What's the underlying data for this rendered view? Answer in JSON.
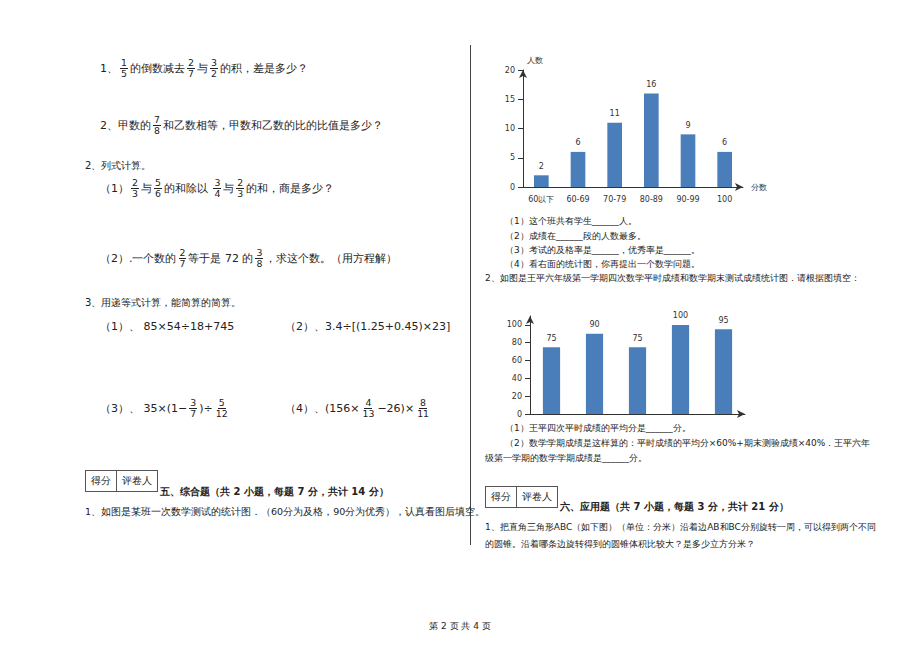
{
  "document": {
    "items": [
      {
        "segments": [
          "1、",
          {
            "n": "1",
            "d": "5"
          },
          "的倒数减去",
          {
            "n": "2",
            "d": "7"
          },
          "与",
          {
            "n": "3",
            "d": "2"
          },
          "的积，差是多少？"
        ]
      },
      {
        "segments": [
          "2、甲数的",
          {
            "n": "7",
            "d": "8"
          },
          "和乙数相等，甲数和乙数的比的比值是多少？"
        ]
      },
      {
        "segments": [
          "2、列式计算。"
        ]
      },
      {
        "segments": [
          "（1）",
          {
            "n": "2",
            "d": "3"
          },
          "与",
          {
            "n": "5",
            "d": "6"
          },
          "的和除以 ",
          {
            "n": "3",
            "d": "4"
          },
          "与",
          {
            "n": "2",
            "d": "3"
          },
          "的和，商是多少？"
        ]
      },
      {
        "segments": [
          "（2）.一个数的",
          {
            "n": "2",
            "d": "7"
          },
          "等于是 72 的",
          {
            "n": "3",
            "d": "8"
          },
          "，求这个数。（用方程解）"
        ]
      },
      {
        "segments": [
          "3、用递等式计算，能简算的简算。"
        ]
      },
      {
        "segments": [
          "（1）、 85×54÷18+745"
        ]
      },
      {
        "segments": [
          "（2）、3.4÷[(1.25+0.45)×23]"
        ]
      },
      {
        "segments": [
          "（3）、 35×(1−",
          {
            "n": "3",
            "d": "7"
          },
          ")÷",
          {
            "n": "5",
            "d": "12"
          }
        ]
      },
      {
        "segments": [
          "（4）、(156×",
          {
            "n": "4",
            "d": "13"
          },
          "−26)×",
          {
            "n": "8",
            "d": "11"
          }
        ]
      },
      {
        "segments": [
          "五、综合题（共 2 小题，每题 7 分，共计 14 分）"
        ]
      },
      {
        "segments": [
          "1、如图是某班一次数学测试的统计图．（60分为及格，90分为优秀），认真看图后填空。"
        ]
      },
      {
        "segments": [
          "（1）这个班共有学生______人。"
        ]
      },
      {
        "segments": [
          "（2）成绩在______段的人数最多。"
        ]
      },
      {
        "segments": [
          "（3）考试的及格率是______，优秀率是______。"
        ]
      },
      {
        "segments": [
          "（4）看右面的统计图，你再提出一个数学问题。"
        ]
      },
      {
        "segments": [
          "2、如图是王平六年级第一学期四次数学平时成绩和数学期末测试成绩统计图．请根据图填空："
        ]
      },
      {
        "segments": [
          "（1）王平四次平时成绩的平均分是______分。"
        ]
      },
      {
        "segments": [
          "（2）数学学期成绩是这样算的：平时成绩的平均分×60%+期末测验成绩×40%．王平六年"
        ]
      },
      {
        "segments": [
          "级第一学期的数学学期成绩是______分。"
        ]
      },
      {
        "segments": [
          "六、应用题（共 7 小题，每题 3 分，共计 21 分）"
        ]
      },
      {
        "segments": [
          "1、把直角三角形ABC（如下图）（单位：分米）沿着边AB和BC分别旋转一周，可以得到两个不同"
        ]
      },
      {
        "segments": [
          "的圆锥。沿着哪条边旋转得到的圆锥体积比较大？是多少立方分米？"
        ]
      }
    ],
    "score_box": [
      "得分",
      "评卷人"
    ],
    "footer": "第 2 页 共 4 页"
  },
  "chart_data": [
    {
      "type": "bar",
      "y_label": "人数",
      "x_label": "分数",
      "categories": [
        "60以下",
        "60-69",
        "70-79",
        "80-89",
        "90-99",
        "100"
      ],
      "values": [
        2,
        6,
        11,
        16,
        9,
        6
      ],
      "color": "#4a7ebb",
      "ylim": [
        0,
        20
      ],
      "yticks": [
        0,
        5,
        10,
        15,
        20
      ],
      "grid": false,
      "data_labels": true
    },
    {
      "type": "bar",
      "categories": [
        null,
        null,
        null,
        null,
        null
      ],
      "values": [
        75,
        90,
        75,
        100,
        95
      ],
      "color": "#4a7ebb",
      "ylim": [
        0,
        110
      ],
      "yticks": [
        0,
        20,
        40,
        60,
        80,
        100
      ],
      "grid": false,
      "data_labels": true,
      "tick_labels": "y"
    }
  ]
}
